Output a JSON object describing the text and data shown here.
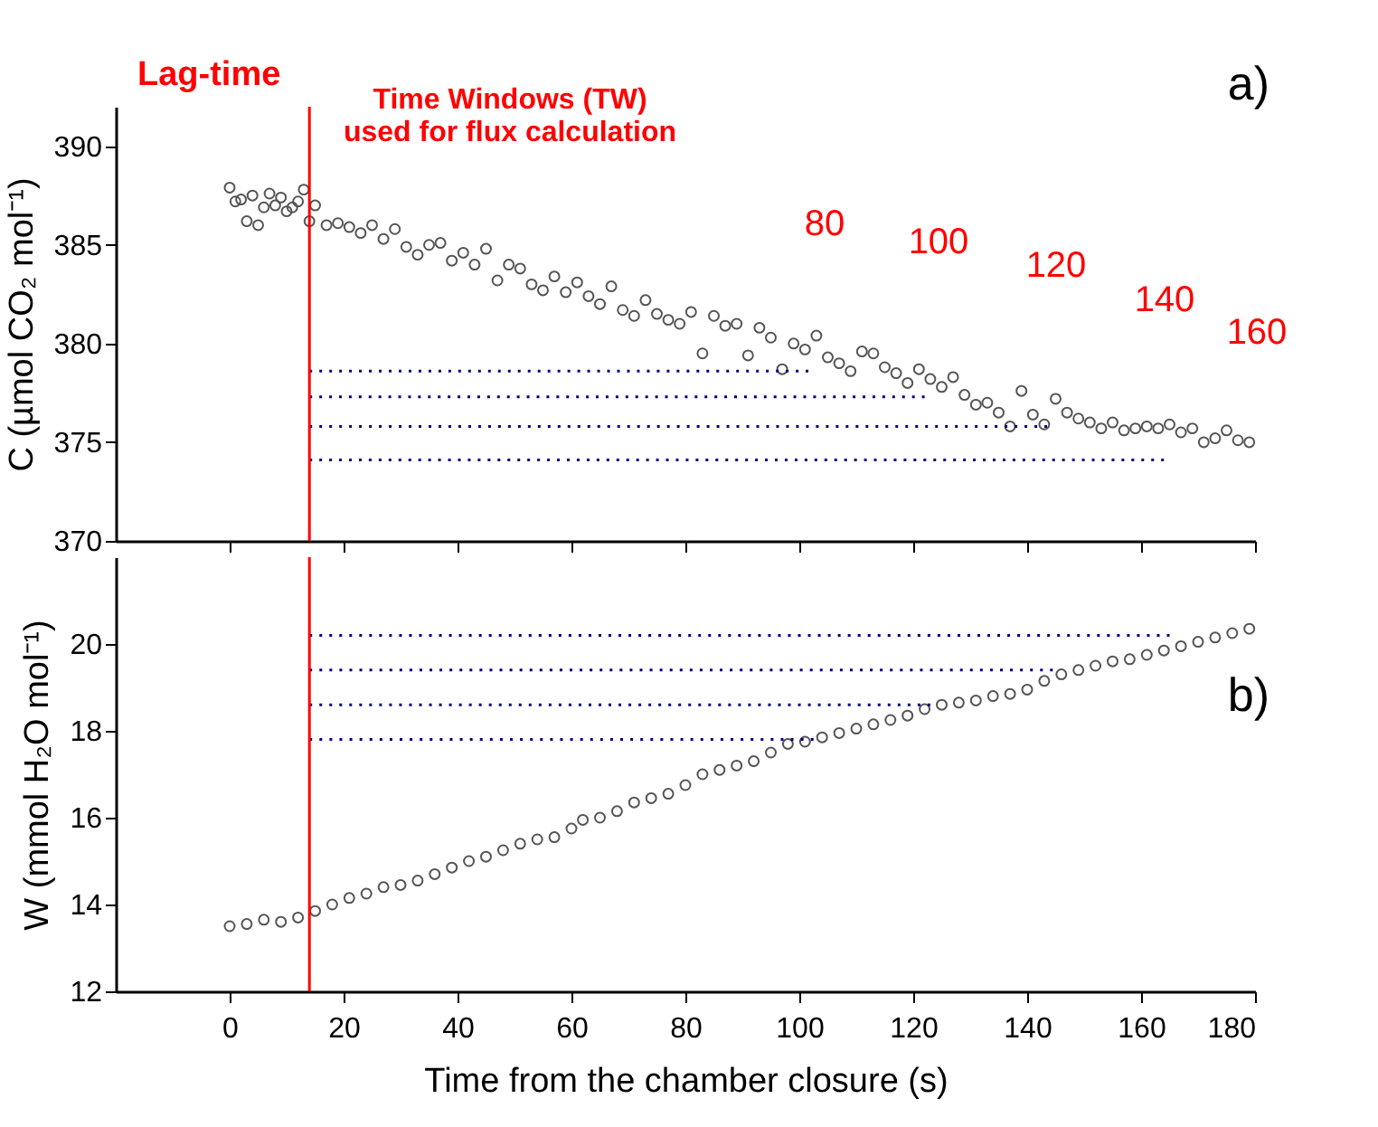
{
  "chart_data": [
    {
      "type": "scatter",
      "ylabel": "C (µmol CO₂ mol⁻¹)",
      "xlim": [
        -20,
        180
      ],
      "xticks": [
        0,
        20,
        40,
        60,
        80,
        100,
        120,
        140,
        160,
        180
      ],
      "ylim": [
        370,
        392
      ],
      "yticks": [
        370,
        375,
        380,
        385,
        390
      ],
      "tick_labels": "y",
      "grid": false,
      "marker": "circle",
      "annotations": [
        "Lag-time",
        "Time Windows (TW)\nused for flux calculation",
        "80",
        "100",
        "120",
        "140",
        "160",
        "a)"
      ],
      "ref_lines": [
        {
          "axis": "x",
          "value": 14,
          "color": "#ff0000"
        }
      ],
      "series": [
        {
          "color": "#555555",
          "x": [
            0,
            1,
            2,
            3,
            4,
            5,
            6,
            7,
            8,
            9,
            10,
            11,
            12,
            13,
            14,
            15,
            17,
            19,
            21,
            23,
            25,
            27,
            29,
            31,
            33,
            35,
            37,
            39,
            41,
            43,
            45,
            47,
            49,
            51,
            53,
            55,
            57,
            59,
            61,
            63,
            65,
            67,
            69,
            71,
            73,
            75,
            77,
            79,
            81,
            83,
            85,
            87,
            89,
            91,
            93,
            95,
            97,
            99,
            101,
            103,
            105,
            107,
            109,
            111,
            113,
            115,
            117,
            119,
            121,
            123,
            125,
            127,
            129,
            131,
            133,
            135,
            137,
            139,
            141,
            143,
            145,
            147,
            149,
            151,
            153,
            155,
            157,
            159,
            161,
            163,
            165,
            167,
            169,
            171,
            173,
            175,
            177,
            179
          ],
          "values": [
            387.9,
            387.2,
            387.3,
            386.2,
            387.5,
            386.0,
            386.9,
            387.6,
            387.0,
            387.4,
            386.7,
            386.9,
            387.2,
            387.8,
            386.2,
            387.0,
            386.0,
            386.1,
            385.9,
            385.6,
            386.0,
            385.3,
            385.8,
            384.9,
            384.5,
            385.0,
            385.1,
            384.2,
            384.6,
            384.0,
            384.8,
            383.2,
            384.0,
            383.8,
            383.0,
            382.7,
            383.4,
            382.6,
            383.1,
            382.4,
            382.0,
            382.9,
            381.7,
            381.4,
            382.2,
            381.5,
            381.2,
            381.0,
            381.6,
            379.5,
            381.4,
            380.9,
            381.0,
            379.4,
            380.8,
            380.3,
            378.7,
            380.0,
            379.7,
            380.4,
            379.3,
            379.0,
            378.6,
            379.6,
            379.5,
            378.8,
            378.5,
            378.0,
            378.7,
            378.2,
            377.8,
            378.3,
            377.4,
            376.9,
            377.0,
            376.5,
            375.8,
            377.6,
            376.4,
            375.9,
            377.2,
            376.5,
            376.2,
            376.0,
            375.7,
            376.0,
            375.6,
            375.7,
            375.8,
            375.7,
            375.9,
            375.5,
            375.7,
            375.0,
            375.2,
            375.6,
            375.1,
            375.0
          ]
        },
        {
          "type": "line",
          "color": "#000080",
          "line_style": "dotted",
          "marker": "none",
          "x": [
            14,
            101.6
          ],
          "values": [
            378.6,
            378.6
          ]
        },
        {
          "type": "line",
          "color": "#000080",
          "line_style": "dotted",
          "marker": "none",
          "x": [
            14,
            122
          ],
          "values": [
            377.3,
            377.3
          ]
        },
        {
          "type": "line",
          "color": "#000080",
          "line_style": "dotted",
          "marker": "none",
          "x": [
            14,
            143.5
          ],
          "values": [
            375.8,
            375.8
          ]
        },
        {
          "type": "line",
          "color": "#000080",
          "line_style": "dotted",
          "marker": "none",
          "x": [
            14,
            164
          ],
          "values": [
            374.1,
            374.1
          ]
        }
      ]
    },
    {
      "type": "scatter",
      "ylabel": "W (mmol H₂O mol⁻¹)",
      "xlabel": "Time from the chamber closure (s)",
      "xlim": [
        -20,
        180
      ],
      "xticks": [
        0,
        20,
        40,
        60,
        80,
        100,
        120,
        140,
        160,
        180
      ],
      "ylim": [
        12,
        22
      ],
      "yticks": [
        12,
        14,
        16,
        18,
        20
      ],
      "grid": false,
      "marker": "circle",
      "annotations": [
        "b)"
      ],
      "ref_lines": [
        {
          "axis": "x",
          "value": 14,
          "color": "#ff0000"
        }
      ],
      "series": [
        {
          "color": "#555555",
          "x": [
            0,
            3,
            6,
            9,
            12,
            15,
            18,
            21,
            24,
            27,
            30,
            33,
            36,
            39,
            42,
            45,
            48,
            51,
            54,
            57,
            60,
            62,
            65,
            68,
            71,
            74,
            77,
            80,
            83,
            86,
            89,
            92,
            95,
            98,
            101,
            104,
            107,
            110,
            113,
            116,
            119,
            122,
            125,
            128,
            131,
            134,
            137,
            140,
            143,
            146,
            149,
            152,
            155,
            158,
            161,
            164,
            167,
            170,
            173,
            176,
            179
          ],
          "values": [
            13.5,
            13.55,
            13.65,
            13.6,
            13.7,
            13.85,
            14.0,
            14.15,
            14.25,
            14.4,
            14.45,
            14.55,
            14.7,
            14.85,
            15.0,
            15.1,
            15.25,
            15.4,
            15.5,
            15.55,
            15.75,
            15.95,
            16.0,
            16.15,
            16.35,
            16.45,
            16.55,
            16.75,
            17.0,
            17.1,
            17.2,
            17.3,
            17.5,
            17.7,
            17.75,
            17.85,
            17.95,
            18.05,
            18.15,
            18.25,
            18.35,
            18.5,
            18.6,
            18.65,
            18.7,
            18.8,
            18.85,
            18.95,
            19.15,
            19.3,
            19.4,
            19.5,
            19.6,
            19.65,
            19.75,
            19.85,
            19.95,
            20.05,
            20.15,
            20.25,
            20.35
          ]
        },
        {
          "type": "line",
          "color": "#000080",
          "line_style": "dotted",
          "marker": "none",
          "x": [
            14,
            102.5
          ],
          "values": [
            17.8,
            17.8
          ]
        },
        {
          "type": "line",
          "color": "#000080",
          "line_style": "dotted",
          "marker": "none",
          "x": [
            14,
            123
          ],
          "values": [
            18.6,
            18.6
          ]
        },
        {
          "type": "line",
          "color": "#000080",
          "line_style": "dotted",
          "marker": "none",
          "x": [
            14,
            144.5
          ],
          "values": [
            19.4,
            19.4
          ]
        },
        {
          "type": "line",
          "color": "#000080",
          "line_style": "dotted",
          "marker": "none",
          "x": [
            14,
            165
          ],
          "values": [
            20.2,
            20.2
          ]
        }
      ]
    }
  ]
}
